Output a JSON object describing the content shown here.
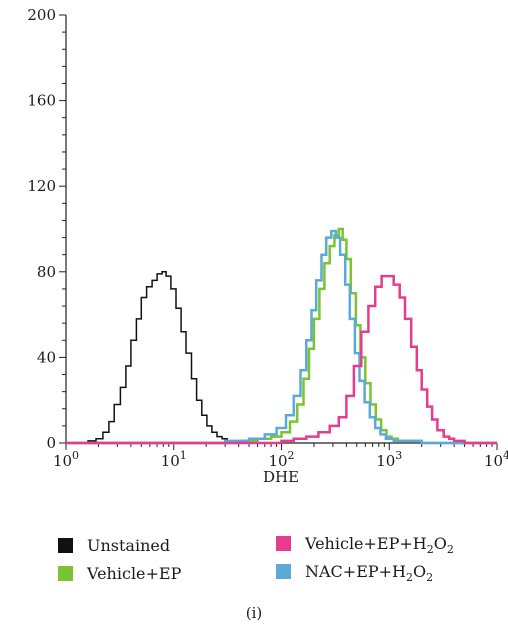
{
  "chart_data": {
    "type": "line",
    "subtype": "flow-cytometry-histogram",
    "title": "",
    "xlabel": "DHE",
    "ylabel": "",
    "xscale": "log",
    "xlim": [
      1,
      10000
    ],
    "ylim": [
      0,
      200
    ],
    "x_ticks": [
      {
        "value": 1,
        "base": "10",
        "exp": "0"
      },
      {
        "value": 10,
        "base": "10",
        "exp": "1"
      },
      {
        "value": 100,
        "base": "10",
        "exp": "2"
      },
      {
        "value": 1000,
        "base": "10",
        "exp": "3"
      },
      {
        "value": 10000,
        "base": "10",
        "exp": "4"
      }
    ],
    "y_ticks": [
      0,
      40,
      80,
      120,
      160,
      200
    ],
    "grid": false,
    "legend_position": "bottom",
    "series": [
      {
        "name": "Unstained",
        "color": "#111111",
        "stroke_width": 1.5,
        "x": [
          1.0,
          1.3,
          1.6,
          1.9,
          2.2,
          2.5,
          2.8,
          3.2,
          3.6,
          4.0,
          4.5,
          5.0,
          5.6,
          6.3,
          7.0,
          7.8,
          8.5,
          9.4,
          10.5,
          11.7,
          13.0,
          14.6,
          16.3,
          18.2,
          20.3,
          22.6,
          25.2,
          28.1,
          31.3,
          35.0
        ],
        "y": [
          0,
          0,
          1,
          2,
          5,
          10,
          18,
          26,
          36,
          48,
          58,
          68,
          73,
          76,
          79,
          80,
          78,
          72,
          63,
          52,
          42,
          30,
          20,
          13,
          8,
          5,
          3,
          2,
          1,
          0
        ]
      },
      {
        "name": "Vehicle+EP",
        "color": "#7ac431",
        "stroke_width": 2.5,
        "x": [
          1.0,
          10.0,
          40.0,
          60.0,
          80.0,
          100.0,
          120.0,
          140.0,
          160.0,
          180.0,
          200.0,
          225.0,
          250.0,
          280.0,
          310.0,
          340.0,
          370.0,
          400.0,
          440.0,
          490.0,
          540.0,
          600.0,
          670.0,
          750.0,
          840.0,
          940.0,
          1050.0,
          1200.0,
          2000.0,
          10000.0
        ],
        "y": [
          0,
          0,
          1,
          2,
          3,
          5,
          10,
          18,
          30,
          44,
          58,
          72,
          84,
          92,
          97,
          100,
          95,
          86,
          70,
          55,
          40,
          28,
          18,
          11,
          6,
          3,
          2,
          1,
          0,
          0
        ]
      },
      {
        "name": "Vehicle+EP+H2O2",
        "color": "#e43d8f",
        "stroke_width": 2.5,
        "x": [
          1.0,
          50.0,
          100.0,
          130.0,
          170.0,
          220.0,
          280.0,
          340.0,
          400.0,
          470.0,
          550.0,
          640.0,
          740.0,
          850.0,
          980.0,
          1100.0,
          1250.0,
          1400.0,
          1600.0,
          1800.0,
          2000.0,
          2250.0,
          2500.0,
          2800.0,
          3200.0,
          3600.0,
          4000.0,
          5000.0,
          10000.0
        ],
        "y": [
          0,
          0,
          1,
          2,
          3,
          5,
          8,
          12,
          22,
          36,
          52,
          64,
          73,
          78,
          78,
          74,
          68,
          58,
          45,
          34,
          25,
          17,
          11,
          6,
          3,
          2,
          1,
          0,
          0
        ]
      },
      {
        "name": "NAC+EP+H2O2",
        "color": "#5aa9d9",
        "stroke_width": 2.5,
        "x": [
          1.0,
          10.0,
          30.0,
          50.0,
          70.0,
          90.0,
          110.0,
          130.0,
          150.0,
          170.0,
          190.0,
          210.0,
          235.0,
          260.0,
          290.0,
          320.0,
          350.0,
          390.0,
          430.0,
          480.0,
          530.0,
          590.0,
          660.0,
          740.0,
          830.0,
          930.0,
          1100.0,
          2000.0,
          10000.0
        ],
        "y": [
          0,
          0,
          1,
          2,
          4,
          7,
          13,
          22,
          34,
          48,
          62,
          76,
          88,
          96,
          99,
          96,
          88,
          74,
          58,
          42,
          29,
          19,
          12,
          7,
          4,
          2,
          1,
          0,
          0
        ]
      }
    ]
  },
  "legend": {
    "items": [
      {
        "key": "unstained",
        "label": "Unstained",
        "color": "#111111"
      },
      {
        "key": "vehicle-ep",
        "label": "Vehicle+EP",
        "color": "#7ac431"
      },
      {
        "key": "vehicle-ep-h2o2",
        "label_base": "Vehicle+EP+H",
        "sub1": "2",
        "mid": "O",
        "sub2": "2",
        "color": "#e43d8f"
      },
      {
        "key": "nac-ep-h2o2",
        "label_base": "NAC+EP+H",
        "sub1": "2",
        "mid": "O",
        "sub2": "2",
        "color": "#5aa9d9"
      }
    ]
  },
  "panel_label": "(i)"
}
